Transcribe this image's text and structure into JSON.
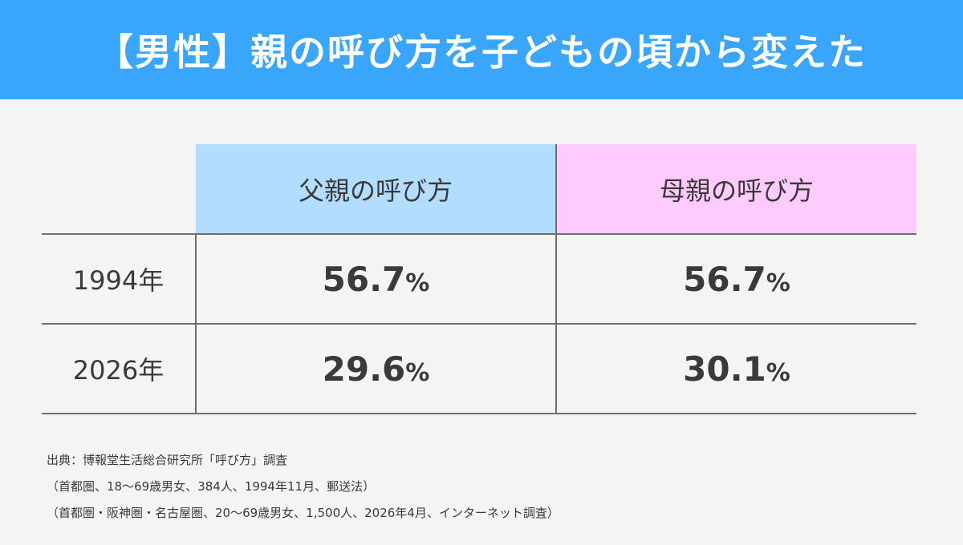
{
  "header": {
    "title": "【男性】親の呼び方を子どもの頃から変えた",
    "background_color": "#3aa6fb"
  },
  "chart_data": {
    "type": "table",
    "columns": [
      "父親の呼び方",
      "母親の呼び方"
    ],
    "column_colors": [
      "#b2ddff",
      "#ffcbff"
    ],
    "unit": "%",
    "rows": [
      {
        "label": "1994年",
        "values": [
          56.7,
          56.7
        ]
      },
      {
        "label": "2026年",
        "values": [
          29.6,
          30.1
        ]
      }
    ]
  },
  "source": {
    "lines": [
      "出典：博報堂生活総合研究所「呼び方」調査",
      "（首都圏、18～69歳男女、384人、1994年11月、郵送法）",
      "（首都圏・阪神圏・名古屋圏、20～69歳男女、1,500人、2026年4月、インターネット調査）"
    ]
  }
}
